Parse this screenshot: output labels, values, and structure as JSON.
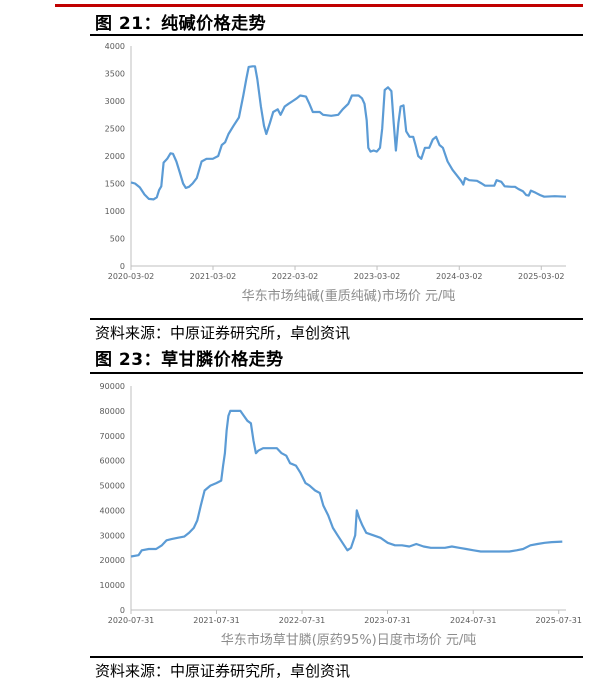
{
  "figures": [
    {
      "title": "图 21：纯碱价格走势",
      "source": "资料来源：中原证券研究所，卓创资讯",
      "line_color": "#5b9bd5"
    },
    {
      "title": "图 23：草甘膦价格走势",
      "source": "资料来源：中原证券研究所，卓创资讯",
      "line_color": "#5b9bd5"
    }
  ],
  "chart_data": [
    {
      "type": "line",
      "title": "",
      "xlabel": "华东市场纯碱(重质纯碱)市场价  元/吨",
      "ylabel": "",
      "x_start": "2020-03-02",
      "x_end": "2025-06-20",
      "ylim": [
        0,
        4000
      ],
      "yticks": [
        0,
        500,
        1000,
        1500,
        2000,
        2500,
        3000,
        3500,
        4000
      ],
      "xticks": [
        "2020-03-02",
        "2021-03-02",
        "2022-03-02",
        "2023-03-02",
        "2024-03-02",
        "2025-03-02"
      ],
      "grid": false,
      "series": [
        {
          "name": "",
          "points": [
            [
              "2020-03-02",
              1520
            ],
            [
              "2020-03-20",
              1500
            ],
            [
              "2020-04-10",
              1430
            ],
            [
              "2020-05-01",
              1300
            ],
            [
              "2020-05-20",
              1220
            ],
            [
              "2020-06-10",
              1210
            ],
            [
              "2020-06-25",
              1250
            ],
            [
              "2020-07-05",
              1380
            ],
            [
              "2020-07-15",
              1450
            ],
            [
              "2020-07-25",
              1880
            ],
            [
              "2020-08-10",
              1950
            ],
            [
              "2020-08-25",
              2050
            ],
            [
              "2020-09-05",
              2040
            ],
            [
              "2020-09-20",
              1900
            ],
            [
              "2020-10-05",
              1700
            ],
            [
              "2020-10-20",
              1500
            ],
            [
              "2020-11-01",
              1420
            ],
            [
              "2020-11-15",
              1440
            ],
            [
              "2020-12-01",
              1500
            ],
            [
              "2020-12-20",
              1600
            ],
            [
              "2021-01-10",
              1900
            ],
            [
              "2021-02-01",
              1950
            ],
            [
              "2021-03-01",
              1950
            ],
            [
              "2021-03-25",
              2000
            ],
            [
              "2021-04-10",
              2200
            ],
            [
              "2021-04-25",
              2250
            ],
            [
              "2021-05-10",
              2400
            ],
            [
              "2021-06-01",
              2550
            ],
            [
              "2021-06-25",
              2700
            ],
            [
              "2021-07-05",
              2900
            ],
            [
              "2021-07-15",
              3100
            ],
            [
              "2021-07-28",
              3400
            ],
            [
              "2021-08-08",
              3620
            ],
            [
              "2021-08-25",
              3630
            ],
            [
              "2021-09-05",
              3630
            ],
            [
              "2021-09-15",
              3400
            ],
            [
              "2021-10-01",
              2900
            ],
            [
              "2021-10-15",
              2550
            ],
            [
              "2021-10-25",
              2400
            ],
            [
              "2021-11-10",
              2600
            ],
            [
              "2021-11-25",
              2800
            ],
            [
              "2021-12-15",
              2850
            ],
            [
              "2021-12-28",
              2750
            ],
            [
              "2022-01-15",
              2900
            ],
            [
              "2022-02-01",
              2950
            ],
            [
              "2022-02-20",
              3000
            ],
            [
              "2022-03-10",
              3050
            ],
            [
              "2022-03-25",
              3100
            ],
            [
              "2022-04-20",
              3080
            ],
            [
              "2022-05-05",
              2950
            ],
            [
              "2022-05-20",
              2800
            ],
            [
              "2022-06-20",
              2800
            ],
            [
              "2022-07-05",
              2750
            ],
            [
              "2022-08-10",
              2730
            ],
            [
              "2022-09-10",
              2750
            ],
            [
              "2022-09-30",
              2850
            ],
            [
              "2022-10-25",
              2950
            ],
            [
              "2022-11-10",
              3100
            ],
            [
              "2022-12-10",
              3100
            ],
            [
              "2022-12-25",
              3050
            ],
            [
              "2023-01-05",
              2950
            ],
            [
              "2023-01-15",
              2650
            ],
            [
              "2023-01-22",
              2150
            ],
            [
              "2023-02-01",
              2080
            ],
            [
              "2023-02-15",
              2100
            ],
            [
              "2023-03-01",
              2080
            ],
            [
              "2023-03-15",
              2150
            ],
            [
              "2023-03-25",
              2500
            ],
            [
              "2023-04-05",
              3200
            ],
            [
              "2023-04-20",
              3250
            ],
            [
              "2023-05-05",
              3180
            ],
            [
              "2023-05-15",
              2600
            ],
            [
              "2023-05-25",
              2100
            ],
            [
              "2023-06-05",
              2600
            ],
            [
              "2023-06-15",
              2900
            ],
            [
              "2023-06-28",
              2920
            ],
            [
              "2023-07-10",
              2450
            ],
            [
              "2023-07-25",
              2350
            ],
            [
              "2023-08-10",
              2350
            ],
            [
              "2023-08-20",
              2200
            ],
            [
              "2023-09-01",
              2000
            ],
            [
              "2023-09-15",
              1950
            ],
            [
              "2023-10-01",
              2150
            ],
            [
              "2023-10-20",
              2150
            ],
            [
              "2023-11-05",
              2300
            ],
            [
              "2023-11-20",
              2350
            ],
            [
              "2023-12-05",
              2200
            ],
            [
              "2023-12-20",
              2150
            ],
            [
              "2024-01-10",
              1900
            ],
            [
              "2024-02-01",
              1750
            ],
            [
              "2024-02-20",
              1650
            ],
            [
              "2024-03-10",
              1550
            ],
            [
              "2024-03-20",
              1480
            ],
            [
              "2024-03-28",
              1600
            ],
            [
              "2024-04-15",
              1560
            ],
            [
              "2024-05-20",
              1550
            ],
            [
              "2024-06-10",
              1500
            ],
            [
              "2024-06-25",
              1460
            ],
            [
              "2024-08-05",
              1460
            ],
            [
              "2024-08-15",
              1560
            ],
            [
              "2024-09-05",
              1530
            ],
            [
              "2024-09-20",
              1450
            ],
            [
              "2024-10-20",
              1440
            ],
            [
              "2024-11-05",
              1440
            ],
            [
              "2024-11-20",
              1400
            ],
            [
              "2024-12-10",
              1360
            ],
            [
              "2024-12-25",
              1290
            ],
            [
              "2025-01-05",
              1280
            ],
            [
              "2025-01-15",
              1370
            ],
            [
              "2025-02-05",
              1330
            ],
            [
              "2025-02-25",
              1290
            ],
            [
              "2025-03-15",
              1260
            ],
            [
              "2025-05-01",
              1270
            ],
            [
              "2025-06-20",
              1260
            ]
          ]
        }
      ]
    },
    {
      "type": "line",
      "title": "",
      "xlabel": "华东市场草甘膦(原药95%)日度市场价  元/吨",
      "ylabel": "",
      "x_start": "2020-07-31",
      "x_end": "2025-08-31",
      "ylim": [
        0,
        90000
      ],
      "yticks": [
        0,
        10000,
        20000,
        30000,
        40000,
        50000,
        60000,
        70000,
        80000,
        90000
      ],
      "xticks": [
        "2020-07-31",
        "2021-07-31",
        "2022-07-31",
        "2023-07-31",
        "2024-07-31",
        "2025-07-31"
      ],
      "grid": false,
      "series": [
        {
          "name": "",
          "points": [
            [
              "2020-07-31",
              21500
            ],
            [
              "2020-09-01",
              22000
            ],
            [
              "2020-09-15",
              24000
            ],
            [
              "2020-10-15",
              24500
            ],
            [
              "2020-11-15",
              24500
            ],
            [
              "2020-12-10",
              26000
            ],
            [
              "2020-12-30",
              28000
            ],
            [
              "2021-01-20",
              28500
            ],
            [
              "2021-02-15",
              29000
            ],
            [
              "2021-03-15",
              29500
            ],
            [
              "2021-04-05",
              31000
            ],
            [
              "2021-04-25",
              33000
            ],
            [
              "2021-05-10",
              36000
            ],
            [
              "2021-05-25",
              42000
            ],
            [
              "2021-06-10",
              48000
            ],
            [
              "2021-07-05",
              50000
            ],
            [
              "2021-07-30",
              51000
            ],
            [
              "2021-08-20",
              52000
            ],
            [
              "2021-08-28",
              58000
            ],
            [
              "2021-09-05",
              63000
            ],
            [
              "2021-09-12",
              72000
            ],
            [
              "2021-09-20",
              78000
            ],
            [
              "2021-09-28",
              80000
            ],
            [
              "2021-10-10",
              80000
            ],
            [
              "2021-10-25",
              80000
            ],
            [
              "2021-11-10",
              80000
            ],
            [
              "2021-11-25",
              78000
            ],
            [
              "2021-12-10",
              76000
            ],
            [
              "2021-12-25",
              75000
            ],
            [
              "2022-01-05",
              68000
            ],
            [
              "2022-01-15",
              63000
            ],
            [
              "2022-01-25",
              64000
            ],
            [
              "2022-02-15",
              65000
            ],
            [
              "2022-03-10",
              65000
            ],
            [
              "2022-04-15",
              65000
            ],
            [
              "2022-05-05",
              63000
            ],
            [
              "2022-05-25",
              62000
            ],
            [
              "2022-06-10",
              59000
            ],
            [
              "2022-07-05",
              58000
            ],
            [
              "2022-07-25",
              55000
            ],
            [
              "2022-08-15",
              51000
            ],
            [
              "2022-09-01",
              50000
            ],
            [
              "2022-09-25",
              48000
            ],
            [
              "2022-10-15",
              47000
            ],
            [
              "2022-10-30",
              42000
            ],
            [
              "2022-11-20",
              38000
            ],
            [
              "2022-12-10",
              33000
            ],
            [
              "2022-12-30",
              30000
            ],
            [
              "2023-01-20",
              27000
            ],
            [
              "2023-02-10",
              24000
            ],
            [
              "2023-02-25",
              25000
            ],
            [
              "2023-03-15",
              30000
            ],
            [
              "2023-03-22",
              40000
            ],
            [
              "2023-04-01",
              37000
            ],
            [
              "2023-04-15",
              34000
            ],
            [
              "2023-05-01",
              31000
            ],
            [
              "2023-06-01",
              30000
            ],
            [
              "2023-07-01",
              29000
            ],
            [
              "2023-08-01",
              27000
            ],
            [
              "2023-09-01",
              26000
            ],
            [
              "2023-10-01",
              26000
            ],
            [
              "2023-11-01",
              25500
            ],
            [
              "2023-12-01",
              26500
            ],
            [
              "2024-01-01",
              25500
            ],
            [
              "2024-02-01",
              25000
            ],
            [
              "2024-03-01",
              25000
            ],
            [
              "2024-04-01",
              25000
            ],
            [
              "2024-05-01",
              25500
            ],
            [
              "2024-06-01",
              25000
            ],
            [
              "2024-07-01",
              24500
            ],
            [
              "2024-08-01",
              24000
            ],
            [
              "2024-09-01",
              23500
            ],
            [
              "2024-10-01",
              23500
            ],
            [
              "2024-11-01",
              23500
            ],
            [
              "2024-12-01",
              23500
            ],
            [
              "2025-01-01",
              23500
            ],
            [
              "2025-02-01",
              24000
            ],
            [
              "2025-03-01",
              24500
            ],
            [
              "2025-04-01",
              26000
            ],
            [
              "2025-05-01",
              26500
            ],
            [
              "2025-06-01",
              27000
            ],
            [
              "2025-07-01",
              27300
            ],
            [
              "2025-08-15",
              27500
            ]
          ]
        }
      ]
    }
  ]
}
